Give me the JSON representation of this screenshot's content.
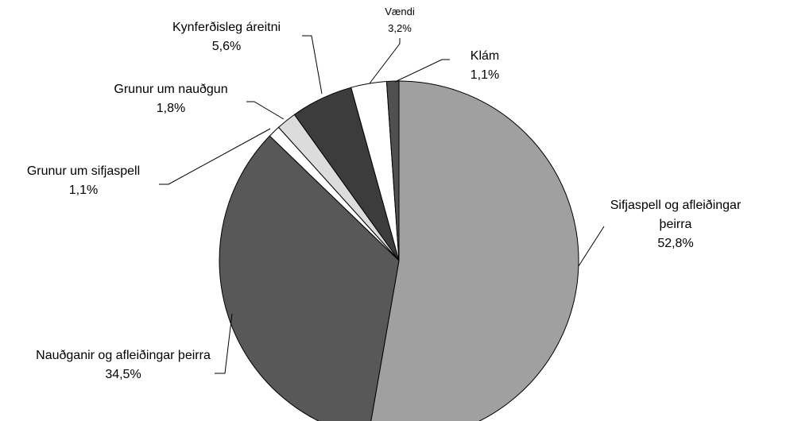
{
  "chart_data": {
    "type": "pie",
    "categories": [
      "Sifjaspell og afleiðingar þeirra",
      "Nauðganir og afleiðingar þeirra",
      "Grunur um sifjaspell",
      "Grunur um nauðgun",
      "Kynferðisleg áreitni",
      "Vændi",
      "Klám"
    ],
    "values": [
      52.8,
      34.5,
      1.1,
      1.8,
      5.6,
      3.2,
      1.1
    ],
    "value_labels": [
      "52,8%",
      "34,5%",
      "1,1%",
      "1,8%",
      "5,6%",
      "3,2%",
      "1,1%"
    ],
    "colors": [
      "#a0a0a0",
      "#585858",
      "#ffffff",
      "#dcdcdc",
      "#3c3c3c",
      "#ffffff",
      "#505050"
    ]
  }
}
